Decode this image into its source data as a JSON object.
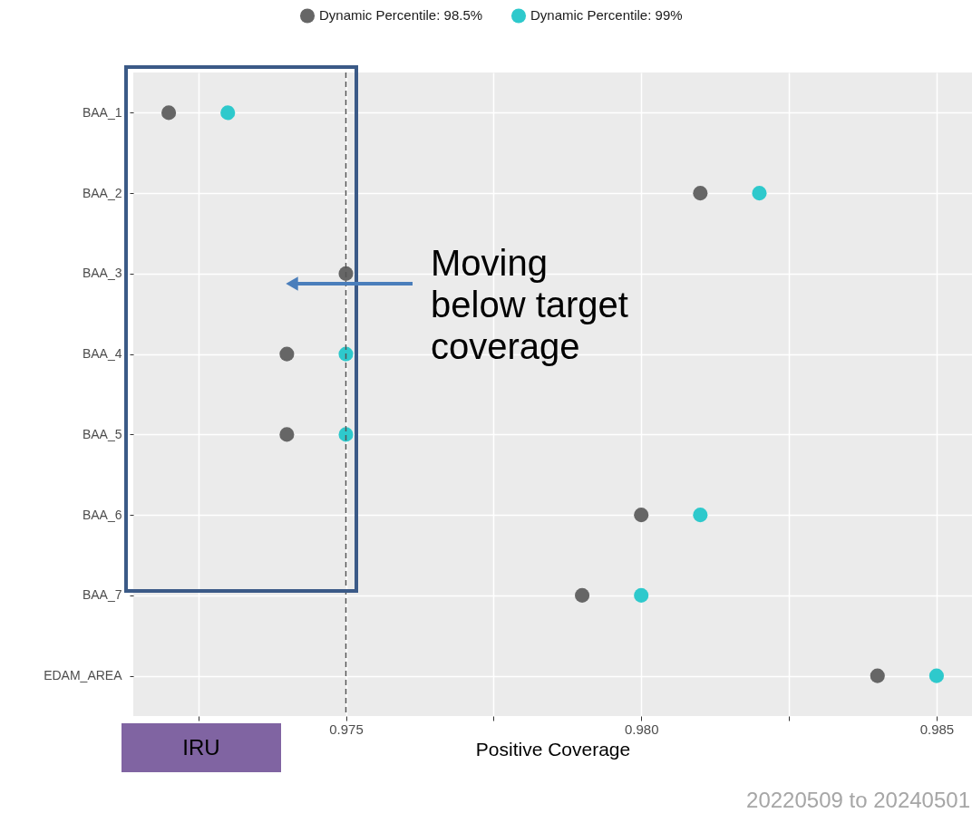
{
  "chart_data": {
    "type": "scatter",
    "xlabel": "Positive Coverage",
    "categories": [
      "BAA_1",
      "BAA_2",
      "BAA_3",
      "BAA_4",
      "BAA_5",
      "BAA_6",
      "BAA_7",
      "EDAM_AREA"
    ],
    "series": [
      {
        "name": "Dynamic Percentile: 98.5%",
        "color": "#666666",
        "values": [
          0.972,
          0.981,
          0.975,
          0.974,
          0.974,
          0.98,
          0.979,
          0.984
        ]
      },
      {
        "name": "Dynamic Percentile: 99%",
        "color": "#2ec9cc",
        "values": [
          0.973,
          0.982,
          null,
          0.975,
          0.975,
          0.981,
          0.98,
          0.985
        ]
      }
    ],
    "xlim": [
      0.9714,
      0.9856
    ],
    "xticks": [
      {
        "value": 0.9725,
        "label": null
      },
      0.975,
      {
        "value": 0.9775,
        "label": null
      },
      {
        "value": 0.98,
        "label": "0.980"
      },
      {
        "value": 0.9825,
        "label": null
      },
      0.985
    ],
    "ref_lines": [
      {
        "axis": "x",
        "value": 0.975,
        "line_style": "dashed",
        "color": "#555555"
      }
    ],
    "annotations": [
      "Moving below target coverage",
      "IRU",
      "20220509 to 20240501"
    ],
    "grid": true,
    "legend": "top",
    "marker": "circle",
    "orientation": "horizontal"
  }
}
